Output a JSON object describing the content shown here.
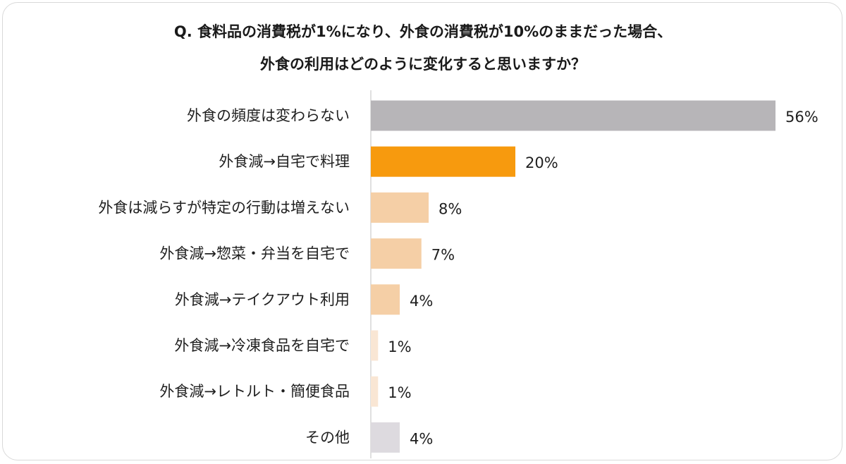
{
  "chart_data": {
    "type": "bar",
    "orientation": "horizontal",
    "title_lines": [
      "Q. 食料品の消費税が1%になり、外食の消費税が10%のままだった場合、",
      "外食の利用はどのように変化すると思いますか？"
    ],
    "categories": [
      "外食の頻度は変わらない",
      "外食減→自宅で料理",
      "外食は減らすが特定の行動は増えない",
      "外食減→惣菜・弁当を自宅で",
      "外食減→テイクアウト利用",
      "外食減→冷凍食品を自宅で",
      "外食減→レトルト・簡便食品",
      "その他"
    ],
    "values": [
      56,
      20,
      8,
      7,
      4,
      1,
      1,
      4
    ],
    "value_labels": [
      "56%",
      "20%",
      "8%",
      "7%",
      "4%",
      "1%",
      "1%",
      "4%"
    ],
    "unit": "%",
    "xlim": [
      0,
      56
    ],
    "bar_colors": [
      "#b7b5b8",
      "#f79a0e",
      "#f5cfa6",
      "#f5cfa6",
      "#f5cfa6",
      "#f9e6d4",
      "#f9e6d4",
      "#dddadf"
    ],
    "axis_color": "#d6d6d6",
    "grid": false,
    "legend": "none"
  }
}
